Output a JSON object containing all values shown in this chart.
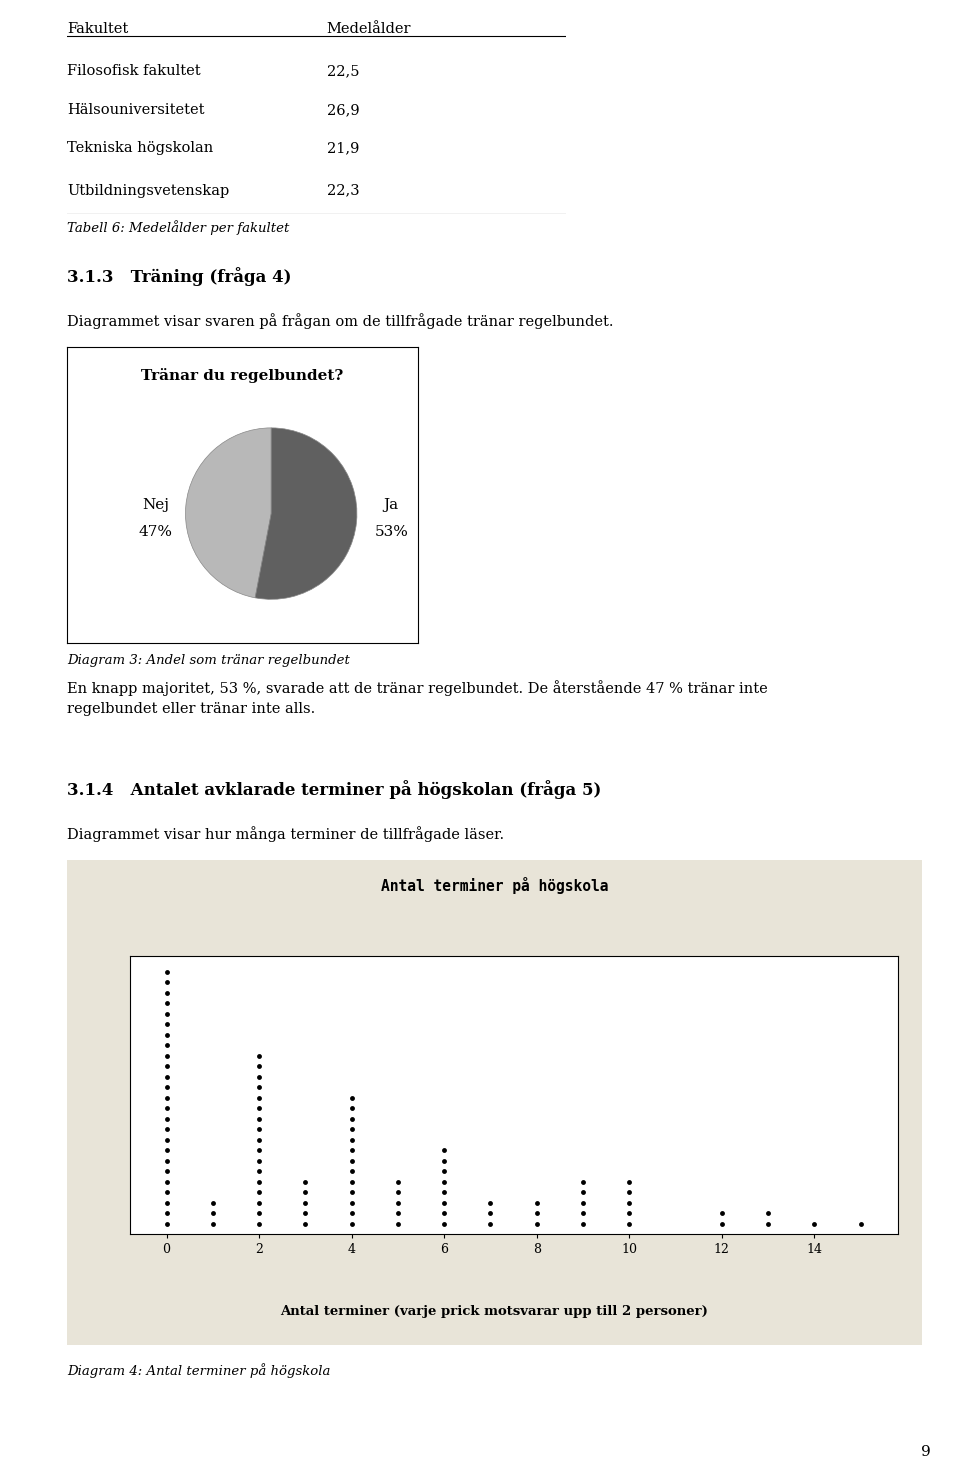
{
  "page_bg": "#ffffff",
  "table_title": "Tabell 6: Medelålder per fakultet",
  "table_col1": "Fakultet",
  "table_col2": "Medelålder",
  "table_rows": [
    [
      "Filosofisk fakultet",
      "22,5"
    ],
    [
      "Hälsouniversitetet",
      "26,9"
    ],
    [
      "Tekniska högskolan",
      "21,9"
    ],
    [
      "Utbildningsvetenskap",
      "22,3"
    ]
  ],
  "section_title": "3.1.3   Träning (fråga 4)",
  "section_desc": "Diagrammet visar svaren på frågan om de tillfrågade tränar regelbundet.",
  "pie_title": "Tränar du regelbundet?",
  "pie_slices": [
    47,
    53
  ],
  "pie_colors": [
    "#b8b8b8",
    "#606060"
  ],
  "pie_startangle": 90,
  "pie_caption": "Diagram 3: Andel som tränar regelbundet",
  "text_after_pie": "En knapp majoritet, 53 %, svarade att de tränar regelbundet. De återstående 47 % tränar inte\nregelbundet eller tränar inte alls.",
  "section2_title": "3.1.4   Antalet avklarade terminer på högskolan (fråga 5)",
  "section2_desc": "Diagrammet visar hur många terminer de tillfrågade läser.",
  "dot_chart_title": "Antal terminer på högskola",
  "dot_chart_bg": "#e8e4d8",
  "dot_xlabel": "Antal terminer (varje prick motsvarar upp till 2 personer)",
  "dot_caption": "Diagram 4: Antal terminer på högskola",
  "dot_data": [
    25,
    3,
    17,
    5,
    13,
    5,
    8,
    3,
    3,
    5,
    5,
    0,
    2,
    2,
    1,
    1
  ],
  "dot_xticks": [
    0,
    2,
    4,
    6,
    8,
    10,
    12,
    14
  ],
  "page_number": "9"
}
